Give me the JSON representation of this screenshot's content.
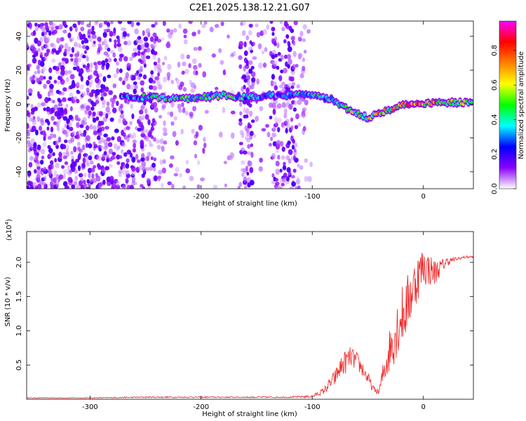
{
  "figure_title": "C2E1.2025.138.12.21.G07",
  "chart_data": [
    {
      "type": "heatmap",
      "xlabel": "Height of straight line (km)",
      "ylabel": "Frequency (Hz)",
      "xlim": [
        -357,
        45
      ],
      "ylim": [
        -50,
        49
      ],
      "xticks": [
        -300,
        -200,
        -100,
        0
      ],
      "xtick_labels": [
        "-300",
        "-200",
        "-100",
        "0"
      ],
      "yticks": [
        40,
        20,
        0,
        -20,
        -40
      ],
      "ytick_labels": [
        "40",
        "20",
        "0",
        "-20",
        "-40"
      ],
      "colorbar": {
        "label": "Normalized spectral amplitude",
        "ticks": [
          0.0,
          0.2,
          0.4,
          0.6,
          0.8
        ],
        "tick_labels": [
          "0.0",
          "0.2",
          "0.4",
          "0.6",
          "0.8"
        ],
        "range": [
          0,
          0.97
        ],
        "colors": [
          "#ffffff",
          "#8b00ff",
          "#0000ff",
          "#00ffff",
          "#00ff00",
          "#ffff00",
          "#ff8000",
          "#ff0000",
          "#ff00ff"
        ]
      },
      "signal_track": [
        {
          "x": -272,
          "freq": 4,
          "amp": 0.35
        },
        {
          "x": -250,
          "freq": 4,
          "amp": 0.45
        },
        {
          "x": -225,
          "freq": 3,
          "amp": 0.5
        },
        {
          "x": -200,
          "freq": 4,
          "amp": 0.45
        },
        {
          "x": -180,
          "freq": 5,
          "amp": 0.5
        },
        {
          "x": -160,
          "freq": 4,
          "amp": 0.4
        },
        {
          "x": -140,
          "freq": 5,
          "amp": 0.3
        },
        {
          "x": -120,
          "freq": 5,
          "amp": 0.35
        },
        {
          "x": -110,
          "freq": 6,
          "amp": 0.45
        },
        {
          "x": -100,
          "freq": 6,
          "amp": 0.5
        },
        {
          "x": -90,
          "freq": 4,
          "amp": 0.35
        },
        {
          "x": -80,
          "freq": 2,
          "amp": 0.45
        },
        {
          "x": -70,
          "freq": -2,
          "amp": 0.5
        },
        {
          "x": -60,
          "freq": -6,
          "amp": 0.55
        },
        {
          "x": -50,
          "freq": -8,
          "amp": 0.6
        },
        {
          "x": -40,
          "freq": -5,
          "amp": 0.7
        },
        {
          "x": -30,
          "freq": -3,
          "amp": 0.65
        },
        {
          "x": -20,
          "freq": -1,
          "amp": 0.75
        },
        {
          "x": -10,
          "freq": 0,
          "amp": 0.85
        },
        {
          "x": 0,
          "freq": 0,
          "amp": 0.8
        },
        {
          "x": 10,
          "freq": 1,
          "amp": 0.9
        },
        {
          "x": 20,
          "freq": 1,
          "amp": 0.7
        },
        {
          "x": 30,
          "freq": 1,
          "amp": 0.6
        },
        {
          "x": 45,
          "freq": 1,
          "amp": 0.55
        }
      ]
    },
    {
      "type": "line",
      "xlabel": "Height of straight line (km)",
      "ylabel": "SNR (10 * v/v)",
      "y_multiplier": "(x10",
      "y_multiplier_exp": "4",
      "xlim": [
        -357,
        45
      ],
      "ylim": [
        0,
        2.45
      ],
      "xticks": [
        -300,
        -200,
        -100,
        0
      ],
      "xtick_labels": [
        "-300",
        "-200",
        "-100",
        "0"
      ],
      "yticks": [
        0.5,
        1.0,
        1.5,
        2.0
      ],
      "ytick_labels": [
        "0.5",
        "1.0",
        "1.5",
        "2.0"
      ],
      "line_color": "#ee2222",
      "series": [
        {
          "x": [
            -357,
            -300,
            -250,
            -200,
            -150,
            -120,
            -100,
            -90,
            -80,
            -75,
            -70,
            -65,
            -60,
            -55,
            -50,
            -45,
            -40,
            -35,
            -30,
            -25,
            -20,
            -15,
            -10,
            -5,
            0,
            5,
            10,
            15,
            20,
            25,
            30,
            35,
            40,
            45
          ],
          "y": [
            0.02,
            0.02,
            0.03,
            0.03,
            0.03,
            0.03,
            0.04,
            0.12,
            0.3,
            0.45,
            0.55,
            0.62,
            0.55,
            0.45,
            0.3,
            0.15,
            0.1,
            0.45,
            0.75,
            1.0,
            1.2,
            1.35,
            1.6,
            1.8,
            1.95,
            1.9,
            1.85,
            1.92,
            2.0,
            2.03,
            2.05,
            2.07,
            2.08,
            2.08
          ],
          "noise": [
            0.005,
            0.005,
            0.01,
            0.01,
            0.01,
            0.01,
            0.02,
            0.05,
            0.12,
            0.15,
            0.18,
            0.15,
            0.15,
            0.12,
            0.1,
            0.05,
            0.04,
            0.25,
            0.35,
            0.45,
            0.45,
            0.45,
            0.4,
            0.35,
            0.3,
            0.25,
            0.2,
            0.12,
            0.08,
            0.04,
            0.03,
            0.02,
            0.02,
            0.02
          ]
        }
      ]
    }
  ]
}
